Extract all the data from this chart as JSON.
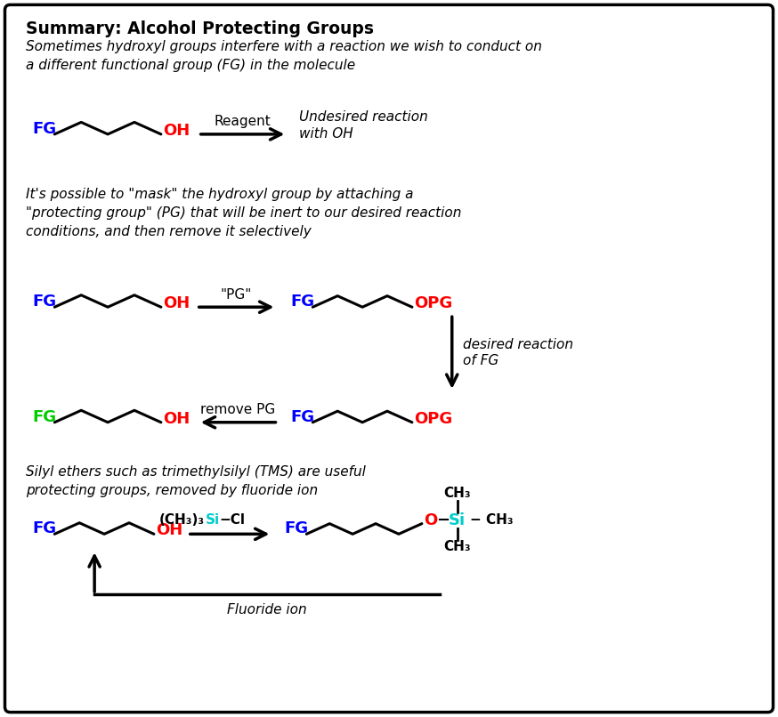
{
  "title": "Summary: Alcohol Protecting Groups",
  "subtitle": "Sometimes hydroxyl groups interfere with a reaction we wish to conduct on\na different functional group (FG) in the molecule",
  "section2_text": "It's possible to \"mask\" the hydroxyl group by attaching a\n\"protecting group\" (PG) that will be inert to our desired reaction\nconditions, and then remove it selectively",
  "section3_text": "Silyl ethers such as trimethylsilyl (TMS) are useful\nprotecting groups, removed by fluoride ion",
  "bg_color": "#ffffff",
  "border_color": "#000000",
  "blue": "#0000ff",
  "red": "#ff0000",
  "green": "#00cc00",
  "cyan": "#00cccc",
  "black": "#000000",
  "fig_width": 8.74,
  "fig_height": 8.06
}
